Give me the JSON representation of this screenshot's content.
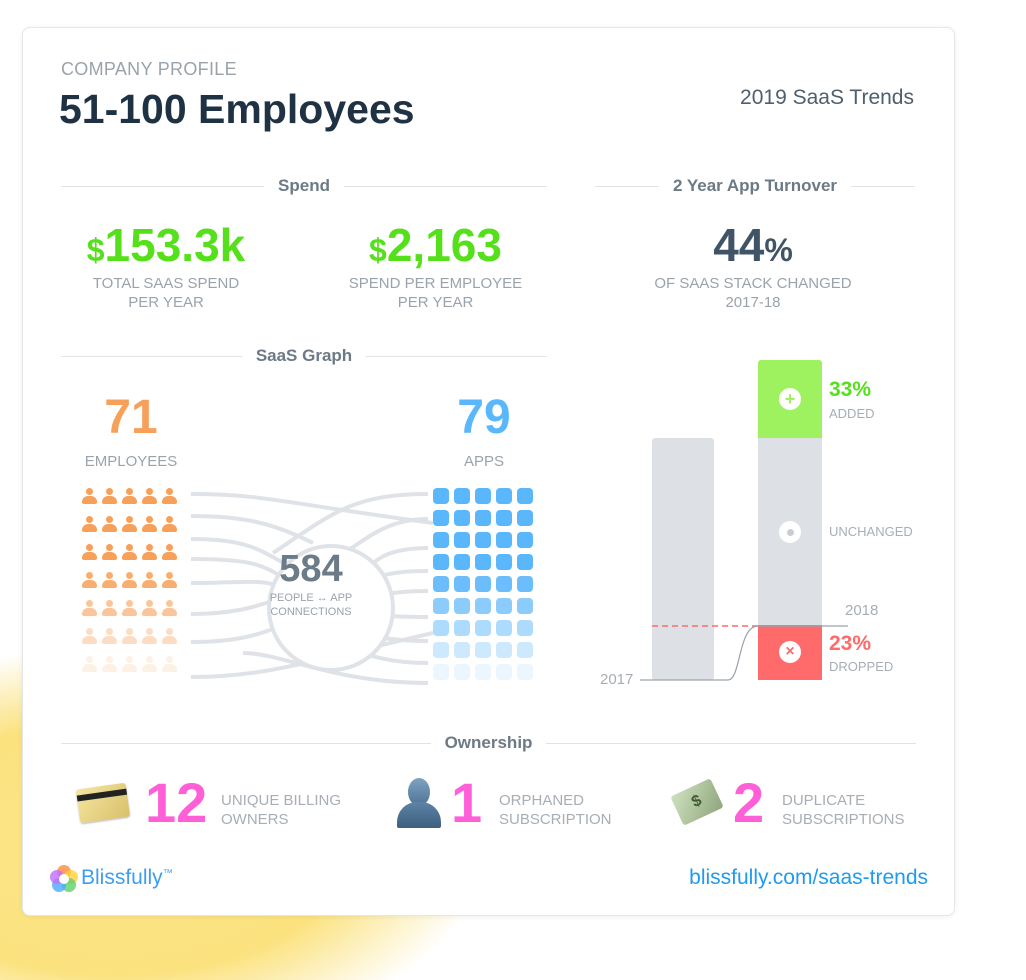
{
  "header": {
    "eyebrow": "COMPANY PROFILE",
    "title": "51-100 Employees",
    "trend": "2019 SaaS Trends"
  },
  "spend": {
    "section": "Spend",
    "total": {
      "currency": "$",
      "value": "153.3k",
      "caption1": "TOTAL SAAS SPEND",
      "caption2": "PER YEAR"
    },
    "per_employee": {
      "currency": "$",
      "value": "2,163",
      "caption1": "SPEND PER EMPLOYEE",
      "caption2": "PER YEAR"
    }
  },
  "turnover": {
    "section": "2 Year App Turnover",
    "value": "44",
    "unit": "%",
    "caption1": "OF SAAS STACK CHANGED",
    "caption2": "2017-18",
    "chart": {
      "added_pct": 33,
      "added_value": "33%",
      "added_label": "ADDED",
      "unchanged_label": "UNCHANGED",
      "dropped_pct": 23,
      "dropped_value": "23%",
      "dropped_label": "DROPPED",
      "year_2017": "2017",
      "year_2018": "2018"
    }
  },
  "graph": {
    "section": "SaaS Graph",
    "employees": "71",
    "employees_label": "EMPLOYEES",
    "apps": "79",
    "apps_label": "APPS",
    "connections": "584",
    "conn_label1": "PEOPLE ↔ APP",
    "conn_label2": "CONNECTIONS"
  },
  "ownership": {
    "section": "Ownership",
    "items": [
      {
        "value": "12",
        "label1": "UNIQUE BILLING",
        "label2": "OWNERS",
        "icon": "credit-card-icon"
      },
      {
        "value": "1",
        "label1": "ORPHANED",
        "label2": "SUBSCRIPTION",
        "icon": "person-silhouette-icon"
      },
      {
        "value": "2",
        "label1": "DUPLICATE",
        "label2": "SUBSCRIPTIONS",
        "icon": "money-wings-icon"
      }
    ]
  },
  "footer": {
    "brand": "Blissfully",
    "tm": "™",
    "link": "blissfully.com/saas-trends"
  },
  "colors": {
    "green": "#55e01b",
    "orange": "#f7a059",
    "blue": "#5bb7fb",
    "pink": "#ff5fd7",
    "red": "#ff6a6a",
    "navy": "#1f3243"
  }
}
